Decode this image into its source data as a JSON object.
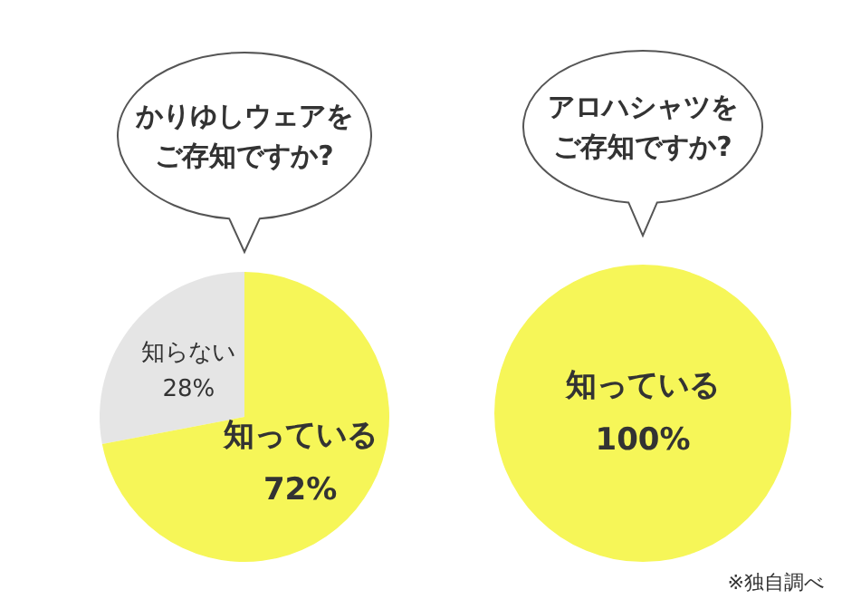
{
  "chart_data": [
    {
      "type": "pie",
      "title": "かりゆしウェアをご存知ですか?",
      "categories": [
        "知らない",
        "知っている"
      ],
      "values": [
        28,
        72
      ],
      "colors": [
        "#e5e5e5",
        "#f6f658"
      ],
      "value_labels": [
        "28%",
        "72%"
      ]
    },
    {
      "type": "pie",
      "title": "アロハシャツをご存知ですか?",
      "categories": [
        "知っている"
      ],
      "values": [
        100
      ],
      "colors": [
        "#f6f658"
      ],
      "value_labels": [
        "100%"
      ],
      "annotations": [
        "※独自調べ"
      ]
    }
  ]
}
